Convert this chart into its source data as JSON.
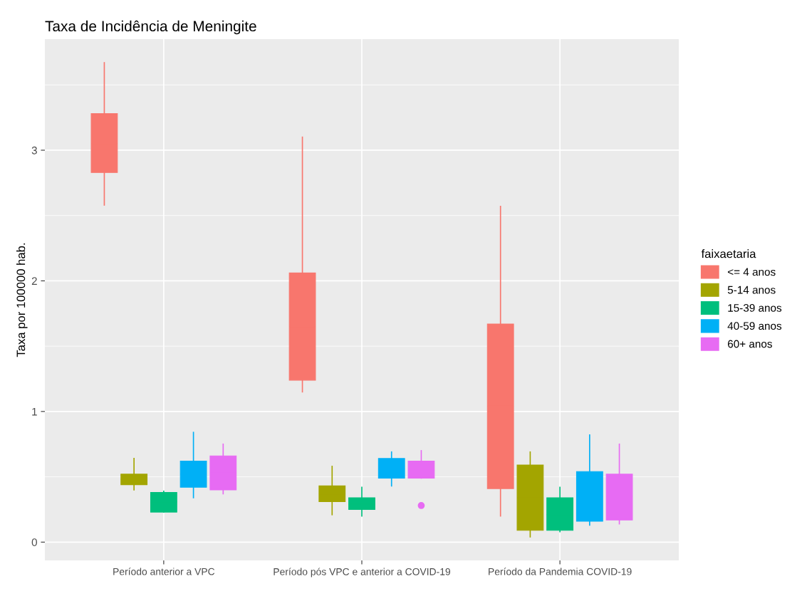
{
  "chart_data": {
    "type": "box",
    "title": "Taxa de Incidência de Meningite",
    "ylabel": "Taxa por 100000 hab.",
    "legend_title": "faixaetaria",
    "categories": [
      "Período anterior a VPC",
      "Período pós VPC e anterior a COVID-19",
      "Período da Pandemia COVID-19"
    ],
    "ylim": [
      -0.14,
      3.85
    ],
    "yticks": [
      0,
      1,
      2,
      3
    ],
    "grid": true,
    "legend": "right",
    "series": [
      {
        "name": "<= 4 anos",
        "color": "#f8766d",
        "boxes": [
          {
            "low": 2.58,
            "q1": 2.83,
            "median": 3.05,
            "q3": 3.28,
            "high": 3.67
          },
          {
            "low": 1.15,
            "q1": 1.24,
            "median": 1.65,
            "q3": 2.06,
            "high": 3.1
          },
          {
            "low": 0.2,
            "q1": 0.41,
            "median": 1.04,
            "q3": 1.67,
            "high": 2.57
          }
        ]
      },
      {
        "name": "5-14 anos",
        "color": "#a3a500",
        "boxes": [
          {
            "low": 0.4,
            "q1": 0.44,
            "median": 0.48,
            "q3": 0.52,
            "high": 0.64
          },
          {
            "low": 0.21,
            "q1": 0.31,
            "median": 0.37,
            "q3": 0.43,
            "high": 0.58
          },
          {
            "low": 0.04,
            "q1": 0.09,
            "median": 0.34,
            "q3": 0.59,
            "high": 0.69
          }
        ]
      },
      {
        "name": "15-39 anos",
        "color": "#00bf7d",
        "boxes": [
          {
            "low": 0.23,
            "q1": 0.23,
            "median": 0.31,
            "q3": 0.38,
            "high": 0.39
          },
          {
            "low": 0.2,
            "q1": 0.25,
            "median": 0.29,
            "q3": 0.34,
            "high": 0.42
          },
          {
            "low": 0.08,
            "q1": 0.09,
            "median": 0.21,
            "q3": 0.34,
            "high": 0.42
          }
        ]
      },
      {
        "name": "40-59 anos",
        "color": "#00b0f6",
        "boxes": [
          {
            "low": 0.34,
            "q1": 0.42,
            "median": 0.52,
            "q3": 0.62,
            "high": 0.84
          },
          {
            "low": 0.43,
            "q1": 0.49,
            "median": 0.56,
            "q3": 0.64,
            "high": 0.69
          },
          {
            "low": 0.13,
            "q1": 0.16,
            "median": 0.35,
            "q3": 0.54,
            "high": 0.82
          }
        ]
      },
      {
        "name": "60+ anos",
        "color": "#e76bf3",
        "boxes": [
          {
            "low": 0.37,
            "q1": 0.4,
            "median": 0.53,
            "q3": 0.66,
            "high": 0.75
          },
          {
            "low": 0.49,
            "q1": 0.49,
            "median": 0.55,
            "q3": 0.62,
            "high": 0.7,
            "outliers": [
              0.28
            ]
          },
          {
            "low": 0.14,
            "q1": 0.17,
            "median": 0.35,
            "q3": 0.52,
            "high": 0.75
          }
        ]
      }
    ]
  }
}
